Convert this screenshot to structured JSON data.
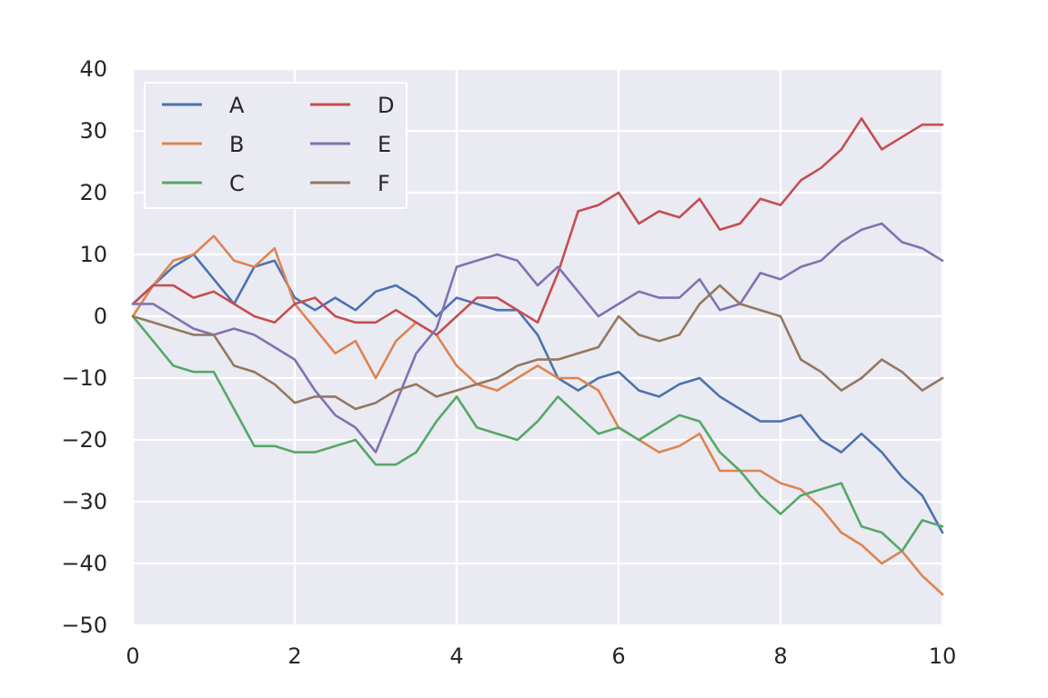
{
  "chart_data": {
    "type": "line",
    "title": "",
    "xlabel": "",
    "ylabel": "",
    "xlim": [
      0,
      10
    ],
    "ylim": [
      -50,
      40
    ],
    "x_ticks": [
      0,
      2,
      4,
      6,
      8,
      10
    ],
    "y_ticks": [
      40,
      30,
      20,
      10,
      0,
      -10,
      -20,
      -30,
      -40,
      -50
    ],
    "x_tick_labels": [
      "0",
      "2",
      "4",
      "6",
      "8",
      "10"
    ],
    "y_tick_labels": [
      "40",
      "30",
      "20",
      "10",
      "0",
      "−10",
      "−20",
      "−30",
      "−40",
      "−50"
    ],
    "grid": true,
    "background": "#EAEAF2",
    "legend": {
      "position": "top-left",
      "columns": 2
    },
    "x": [
      0,
      0.25,
      0.5,
      0.75,
      1.0,
      1.25,
      1.5,
      1.75,
      2.0,
      2.25,
      2.5,
      2.75,
      3.0,
      3.25,
      3.5,
      3.75,
      4.0,
      4.25,
      4.5,
      4.75,
      5.0,
      5.25,
      5.5,
      5.75,
      6.0,
      6.25,
      6.5,
      6.75,
      7.0,
      7.25,
      7.5,
      7.75,
      8.0,
      8.25,
      8.5,
      8.75,
      9.0,
      9.25,
      9.5,
      9.75,
      10.0
    ],
    "series": [
      {
        "name": "A",
        "color": "#4C72B0",
        "values": [
          2,
          5,
          8,
          10,
          6,
          2,
          8,
          9,
          3,
          1,
          3,
          1,
          4,
          5,
          3,
          0,
          3,
          2,
          1,
          1,
          -3,
          -10,
          -12,
          -10,
          -9,
          -12,
          -13,
          -11,
          -10,
          -13,
          -15,
          -17,
          -17,
          -16,
          -20,
          -22,
          -19,
          -22,
          -26,
          -29,
          -35
        ]
      },
      {
        "name": "B",
        "color": "#DD8452",
        "values": [
          0,
          5,
          9,
          10,
          13,
          9,
          8,
          11,
          2,
          -2,
          -6,
          -4,
          -10,
          -4,
          -1,
          -3,
          -8,
          -11,
          -12,
          -10,
          -8,
          -10,
          -10,
          -12,
          -18,
          -20,
          -22,
          -21,
          -19,
          -25,
          -25,
          -25,
          -27,
          -28,
          -31,
          -35,
          -37,
          -40,
          -38,
          -42,
          -45
        ]
      },
      {
        "name": "C",
        "color": "#55A868",
        "values": [
          0,
          -4,
          -8,
          -9,
          -9,
          -15,
          -21,
          -21,
          -22,
          -22,
          -21,
          -20,
          -24,
          -24,
          -22,
          -17,
          -13,
          -18,
          -19,
          -20,
          -17,
          -13,
          -16,
          -19,
          -18,
          -20,
          -18,
          -16,
          -17,
          -22,
          -25,
          -29,
          -32,
          -29,
          -28,
          -27,
          -34,
          -35,
          -38,
          -33,
          -34
        ]
      },
      {
        "name": "D",
        "color": "#C44E52",
        "values": [
          2,
          5,
          5,
          3,
          4,
          2,
          0,
          -1,
          2,
          3,
          0,
          -1,
          -1,
          1,
          -1,
          -3,
          0,
          3,
          3,
          1,
          -1,
          7,
          17,
          18,
          20,
          15,
          17,
          16,
          19,
          14,
          15,
          19,
          18,
          22,
          24,
          27,
          32,
          27,
          29,
          31,
          31
        ]
      },
      {
        "name": "E",
        "color": "#8172B2",
        "values": [
          2,
          2,
          0,
          -2,
          -3,
          -2,
          -3,
          -5,
          -7,
          -12,
          -16,
          -18,
          -22,
          -14,
          -6,
          -2,
          8,
          9,
          10,
          9,
          5,
          8,
          4,
          0,
          2,
          4,
          3,
          3,
          6,
          1,
          2,
          7,
          6,
          8,
          9,
          12,
          14,
          15,
          12,
          11,
          9
        ]
      },
      {
        "name": "F",
        "color": "#937860",
        "values": [
          0,
          -1,
          -2,
          -3,
          -3,
          -8,
          -9,
          -11,
          -14,
          -13,
          -13,
          -15,
          -14,
          -12,
          -11,
          -13,
          -12,
          -11,
          -10,
          -8,
          -7,
          -7,
          -6,
          -5,
          0,
          -3,
          -4,
          -3,
          2,
          5,
          2,
          1,
          0,
          -7,
          -9,
          -12,
          -10,
          -7,
          -9,
          -12,
          -10
        ]
      }
    ]
  }
}
